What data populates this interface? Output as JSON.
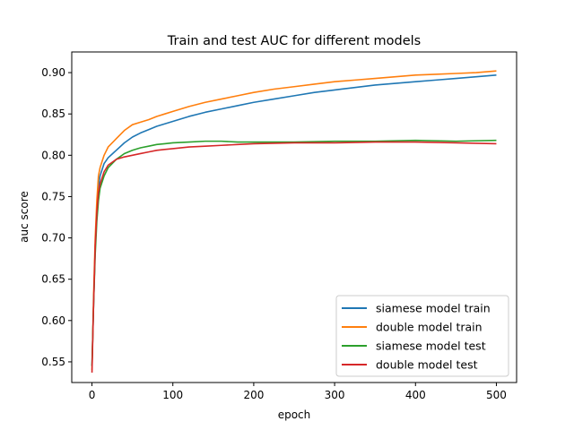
{
  "chart_data": {
    "type": "line",
    "title": "Train and test AUC for different models",
    "xlabel": "epoch",
    "ylabel": "auc score",
    "xlim": [
      -25,
      525
    ],
    "ylim": [
      0.525,
      0.925
    ],
    "xticks": [
      0,
      100,
      200,
      300,
      400,
      500
    ],
    "yticks": [
      0.55,
      0.6,
      0.65,
      0.7,
      0.75,
      0.8,
      0.85,
      0.9
    ],
    "ytick_format": "2dp",
    "grid": false,
    "legend": "lower-right",
    "series": [
      {
        "name": "siamese model train",
        "color": "#1f77b4",
        "points": [
          [
            0,
            0.545
          ],
          [
            2,
            0.62
          ],
          [
            4,
            0.69
          ],
          [
            6,
            0.735
          ],
          [
            8,
            0.76
          ],
          [
            10,
            0.775
          ],
          [
            15,
            0.79
          ],
          [
            20,
            0.797
          ],
          [
            30,
            0.806
          ],
          [
            40,
            0.815
          ],
          [
            50,
            0.822
          ],
          [
            60,
            0.827
          ],
          [
            70,
            0.831
          ],
          [
            80,
            0.835
          ],
          [
            90,
            0.838
          ],
          [
            100,
            0.841
          ],
          [
            120,
            0.847
          ],
          [
            140,
            0.852
          ],
          [
            160,
            0.856
          ],
          [
            180,
            0.86
          ],
          [
            200,
            0.864
          ],
          [
            225,
            0.868
          ],
          [
            250,
            0.872
          ],
          [
            275,
            0.876
          ],
          [
            300,
            0.879
          ],
          [
            325,
            0.882
          ],
          [
            350,
            0.885
          ],
          [
            375,
            0.887
          ],
          [
            400,
            0.889
          ],
          [
            425,
            0.891
          ],
          [
            450,
            0.893
          ],
          [
            475,
            0.895
          ],
          [
            500,
            0.897
          ]
        ]
      },
      {
        "name": "double model train",
        "color": "#ff7f0e",
        "points": [
          [
            0,
            0.54
          ],
          [
            2,
            0.63
          ],
          [
            4,
            0.7
          ],
          [
            6,
            0.745
          ],
          [
            8,
            0.775
          ],
          [
            10,
            0.785
          ],
          [
            15,
            0.8
          ],
          [
            20,
            0.81
          ],
          [
            30,
            0.82
          ],
          [
            40,
            0.83
          ],
          [
            50,
            0.837
          ],
          [
            60,
            0.84
          ],
          [
            70,
            0.843
          ],
          [
            80,
            0.847
          ],
          [
            90,
            0.85
          ],
          [
            100,
            0.853
          ],
          [
            120,
            0.859
          ],
          [
            140,
            0.864
          ],
          [
            160,
            0.868
          ],
          [
            180,
            0.872
          ],
          [
            200,
            0.876
          ],
          [
            225,
            0.88
          ],
          [
            250,
            0.883
          ],
          [
            275,
            0.886
          ],
          [
            300,
            0.889
          ],
          [
            325,
            0.891
          ],
          [
            350,
            0.893
          ],
          [
            375,
            0.895
          ],
          [
            400,
            0.897
          ],
          [
            425,
            0.898
          ],
          [
            450,
            0.899
          ],
          [
            475,
            0.9
          ],
          [
            500,
            0.902
          ]
        ]
      },
      {
        "name": "siamese model test",
        "color": "#2ca02c",
        "points": [
          [
            0,
            0.545
          ],
          [
            2,
            0.62
          ],
          [
            4,
            0.68
          ],
          [
            6,
            0.72
          ],
          [
            8,
            0.745
          ],
          [
            10,
            0.76
          ],
          [
            15,
            0.775
          ],
          [
            20,
            0.785
          ],
          [
            30,
            0.795
          ],
          [
            40,
            0.802
          ],
          [
            50,
            0.806
          ],
          [
            60,
            0.809
          ],
          [
            70,
            0.811
          ],
          [
            80,
            0.813
          ],
          [
            90,
            0.814
          ],
          [
            100,
            0.815
          ],
          [
            120,
            0.816
          ],
          [
            140,
            0.817
          ],
          [
            160,
            0.817
          ],
          [
            180,
            0.816
          ],
          [
            200,
            0.816
          ],
          [
            250,
            0.816
          ],
          [
            300,
            0.817
          ],
          [
            350,
            0.817
          ],
          [
            400,
            0.818
          ],
          [
            450,
            0.817
          ],
          [
            500,
            0.818
          ]
        ]
      },
      {
        "name": "double model test",
        "color": "#d62728",
        "points": [
          [
            0,
            0.537
          ],
          [
            2,
            0.62
          ],
          [
            4,
            0.69
          ],
          [
            6,
            0.73
          ],
          [
            8,
            0.755
          ],
          [
            10,
            0.765
          ],
          [
            15,
            0.78
          ],
          [
            20,
            0.788
          ],
          [
            30,
            0.795
          ],
          [
            40,
            0.798
          ],
          [
            50,
            0.8
          ],
          [
            60,
            0.802
          ],
          [
            70,
            0.804
          ],
          [
            80,
            0.806
          ],
          [
            90,
            0.807
          ],
          [
            100,
            0.808
          ],
          [
            120,
            0.81
          ],
          [
            140,
            0.811
          ],
          [
            160,
            0.812
          ],
          [
            180,
            0.813
          ],
          [
            200,
            0.814
          ],
          [
            250,
            0.815
          ],
          [
            300,
            0.815
          ],
          [
            350,
            0.816
          ],
          [
            400,
            0.816
          ],
          [
            450,
            0.815
          ],
          [
            500,
            0.814
          ]
        ]
      }
    ]
  }
}
